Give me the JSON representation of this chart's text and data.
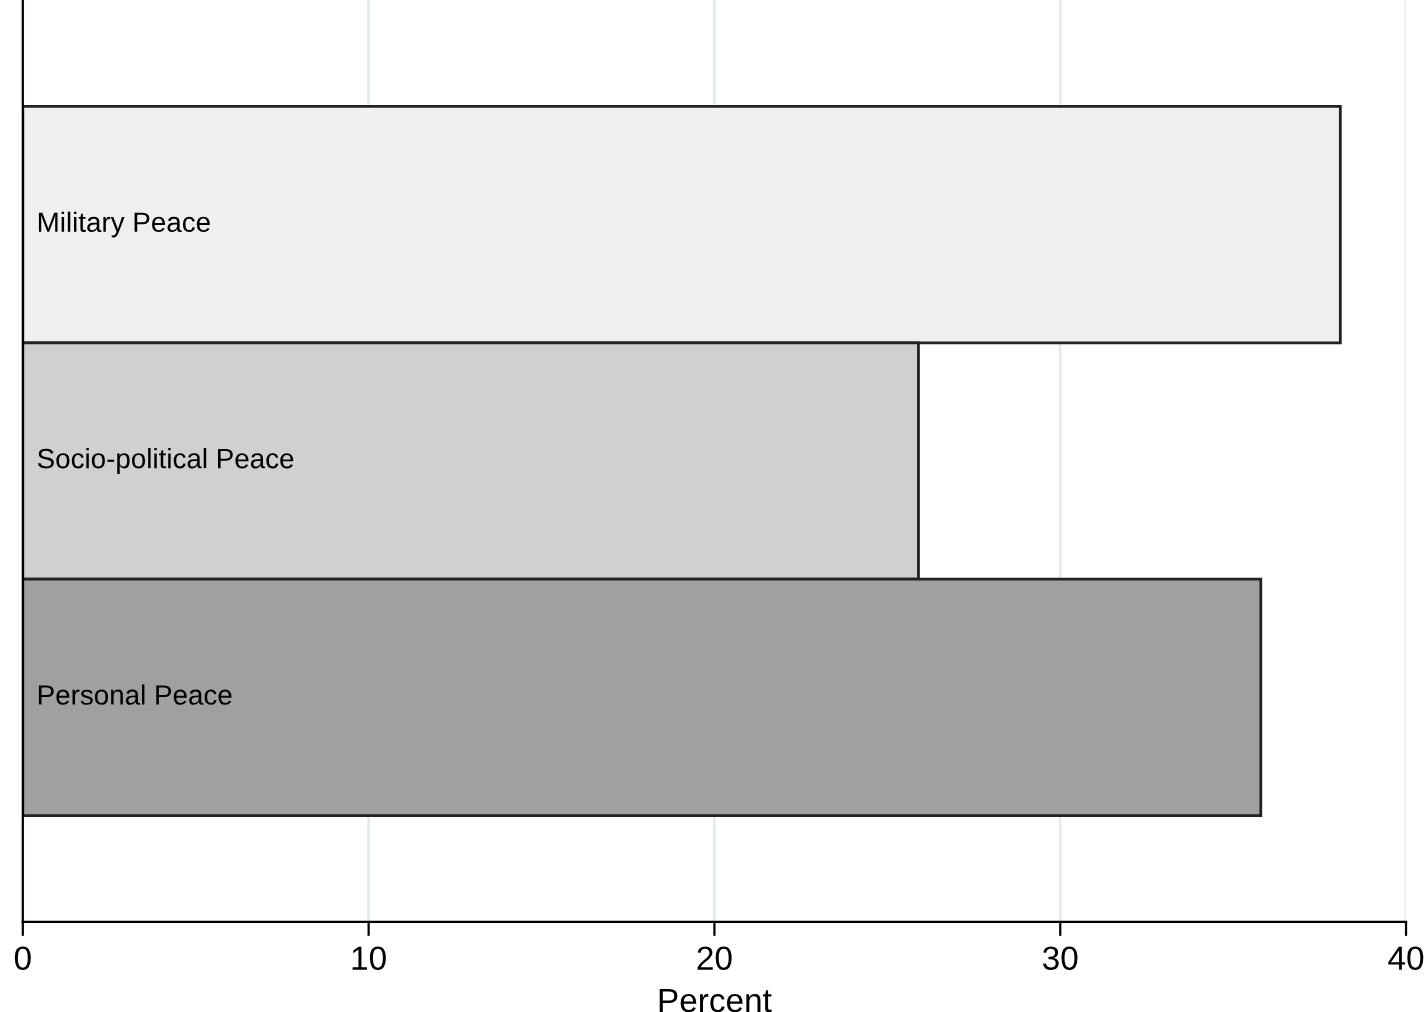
{
  "chart_data": {
    "type": "bar",
    "orientation": "horizontal",
    "xlabel": "Percent",
    "categories": [
      "Military Peace",
      "Socio-political Peace",
      "Personal Peace"
    ],
    "values": [
      38.1,
      25.9,
      35.8
    ],
    "colors": [
      "#efefef",
      "#d0d0d0",
      "#a0a0a0"
    ],
    "xlim": [
      0,
      40
    ],
    "xticks": [
      0,
      10,
      20,
      30,
      40
    ],
    "grid": "x"
  }
}
